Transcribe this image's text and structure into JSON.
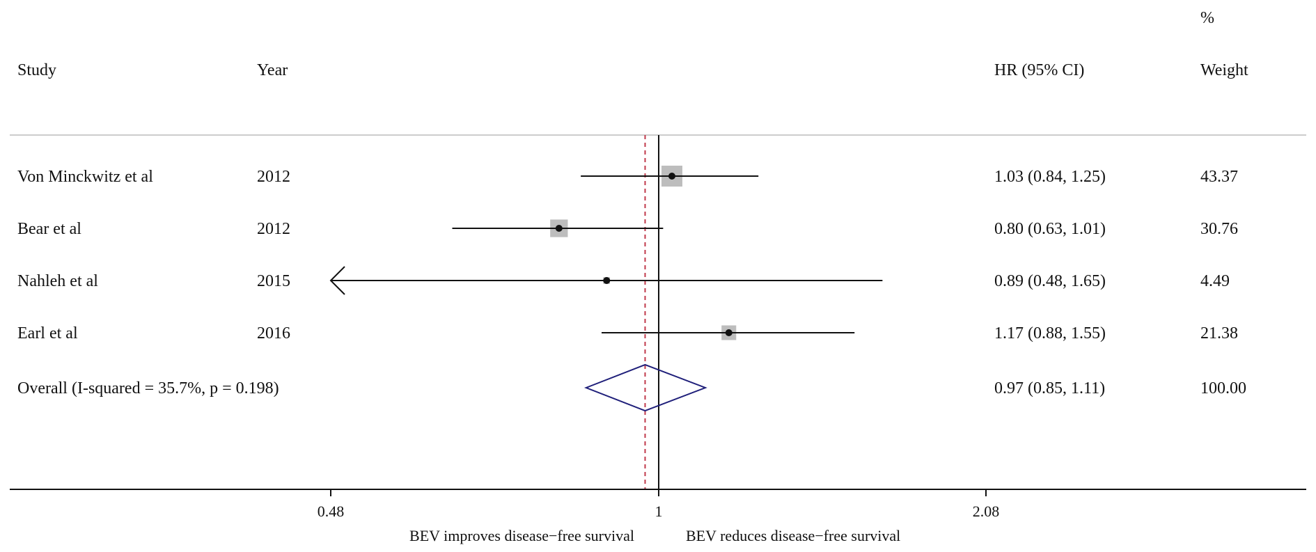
{
  "headers": {
    "study": "Study",
    "year": "Year",
    "hr": "HR (95% CI)",
    "weight_top": "%",
    "weight": "Weight"
  },
  "chart_data": {
    "type": "forest",
    "scale": "log",
    "xlim": [
      0.48,
      2.08
    ],
    "ticks": [
      {
        "value": 0.48,
        "label": "0.48"
      },
      {
        "value": 1,
        "label": "1"
      },
      {
        "value": 2.08,
        "label": "2.08"
      }
    ],
    "null_line": 1,
    "pooled_line": 0.97,
    "xlabel_left": "BEV improves disease−free survival",
    "xlabel_right": "BEV reduces disease−free survival",
    "studies": [
      {
        "study": "Von Minckwitz et al",
        "year": "2012",
        "hr": 1.03,
        "lo": 0.84,
        "hi": 1.25,
        "ci_text": "1.03 (0.84, 1.25)",
        "weight": 43.37,
        "weight_text": "43.37"
      },
      {
        "study": "Bear et al",
        "year": "2012",
        "hr": 0.8,
        "lo": 0.63,
        "hi": 1.01,
        "ci_text": "0.80 (0.63, 1.01)",
        "weight": 30.76,
        "weight_text": "30.76"
      },
      {
        "study": "Nahleh et al",
        "year": "2015",
        "hr": 0.89,
        "lo": 0.48,
        "hi": 1.65,
        "ci_text": "0.89 (0.48, 1.65)",
        "weight": 4.49,
        "weight_text": "4.49",
        "lo_truncated": true
      },
      {
        "study": "Earl et al",
        "year": "2016",
        "hr": 1.17,
        "lo": 0.88,
        "hi": 1.55,
        "ci_text": "1.17 (0.88, 1.55)",
        "weight": 21.38,
        "weight_text": "21.38"
      }
    ],
    "overall": {
      "label": "Overall  (I-squared = 35.7%, p = 0.198)",
      "hr": 0.97,
      "lo": 0.85,
      "hi": 1.11,
      "ci_text": "0.97 (0.85, 1.11)",
      "weight_text": "100.00"
    },
    "colors": {
      "box": "#bdbdbd",
      "line": "#111111",
      "diamond": "#1f1f7a",
      "pooled_line": "#c0394b",
      "separator": "#cccccc"
    }
  }
}
